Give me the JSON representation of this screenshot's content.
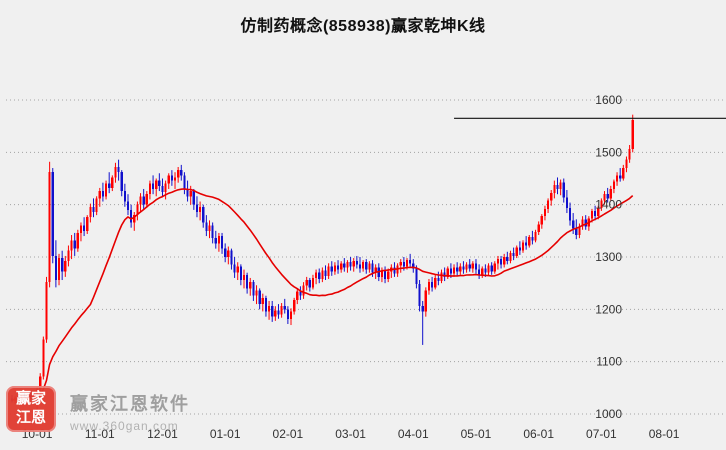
{
  "title": "仿制药概念(858938)赢家乾坤K线",
  "watermark": {
    "logo_line1": "赢家",
    "logo_line2": "江恩",
    "name": "赢家江恩软件",
    "site": "www.360gan.com"
  },
  "colors": {
    "up": "#ff0000",
    "down": "#1010cc",
    "ma": "#e60000",
    "grid": "#a3a3a3",
    "price_line": "#111111",
    "axis_text": "#333333",
    "background": "#f0f0f0"
  },
  "chart_data": {
    "type": "candlestick",
    "title": "仿制药概念(858938)赢家乾坤K线",
    "ylabel": "",
    "xlabel": "",
    "ylim": [
      1000,
      1600
    ],
    "y_ticks": [
      1000,
      1100,
      1200,
      1300,
      1400,
      1500,
      1600
    ],
    "x_tick_labels": [
      "10-01",
      "11-01",
      "12-01",
      "01-01",
      "02-01",
      "03-01",
      "04-01",
      "05-01",
      "06-01",
      "07-01",
      "08-01"
    ],
    "x_tick_indices": [
      8,
      28,
      48,
      68,
      88,
      108,
      128,
      148,
      168,
      188,
      208
    ],
    "grid": "dotted-horizontal",
    "legend": "none",
    "y_axis_side": "right",
    "ma_period": 26,
    "price_line": {
      "value": 1565,
      "from_index": 141
    },
    "ohlc": [
      [
        1030,
        1036,
        1022,
        1026
      ],
      [
        1026,
        1034,
        1020,
        1032
      ],
      [
        1032,
        1038,
        1024,
        1028
      ],
      [
        1028,
        1036,
        1022,
        1034
      ],
      [
        1034,
        1040,
        1026,
        1030
      ],
      [
        1030,
        1038,
        1022,
        1036
      ],
      [
        1036,
        1042,
        1028,
        1032
      ],
      [
        1032,
        1040,
        1026,
        1038
      ],
      [
        1038,
        1052,
        1008,
        1048
      ],
      [
        1048,
        1078,
        1040,
        1072
      ],
      [
        1072,
        1148,
        1066,
        1142
      ],
      [
        1142,
        1262,
        1136,
        1252
      ],
      [
        1252,
        1482,
        1242,
        1462
      ],
      [
        1462,
        1470,
        1288,
        1302
      ],
      [
        1302,
        1332,
        1242,
        1256
      ],
      [
        1256,
        1306,
        1246,
        1298
      ],
      [
        1298,
        1312,
        1256,
        1272
      ],
      [
        1272,
        1302,
        1262,
        1292
      ],
      [
        1292,
        1322,
        1282,
        1312
      ],
      [
        1312,
        1342,
        1296,
        1332
      ],
      [
        1332,
        1346,
        1302,
        1316
      ],
      [
        1316,
        1352,
        1310,
        1346
      ],
      [
        1346,
        1366,
        1330,
        1360
      ],
      [
        1360,
        1376,
        1340,
        1350
      ],
      [
        1350,
        1380,
        1344,
        1376
      ],
      [
        1376,
        1402,
        1366,
        1396
      ],
      [
        1396,
        1412,
        1376,
        1386
      ],
      [
        1386,
        1416,
        1380,
        1412
      ],
      [
        1412,
        1432,
        1396,
        1426
      ],
      [
        1426,
        1442,
        1406,
        1416
      ],
      [
        1416,
        1446,
        1410,
        1440
      ],
      [
        1440,
        1462,
        1422,
        1432
      ],
      [
        1432,
        1456,
        1426,
        1452
      ],
      [
        1452,
        1480,
        1442,
        1472
      ],
      [
        1472,
        1486,
        1446,
        1462
      ],
      [
        1462,
        1466,
        1416,
        1426
      ],
      [
        1426,
        1440,
        1396,
        1406
      ],
      [
        1406,
        1420,
        1380,
        1390
      ],
      [
        1390,
        1400,
        1356,
        1366
      ],
      [
        1366,
        1386,
        1350,
        1380
      ],
      [
        1380,
        1406,
        1370,
        1400
      ],
      [
        1400,
        1422,
        1386,
        1416
      ],
      [
        1416,
        1430,
        1390,
        1400
      ],
      [
        1400,
        1426,
        1394,
        1420
      ],
      [
        1420,
        1446,
        1410,
        1440
      ],
      [
        1440,
        1456,
        1420,
        1430
      ],
      [
        1430,
        1450,
        1416,
        1446
      ],
      [
        1446,
        1460,
        1426,
        1436
      ],
      [
        1436,
        1450,
        1414,
        1424
      ],
      [
        1424,
        1446,
        1410,
        1440
      ],
      [
        1440,
        1460,
        1430,
        1456
      ],
      [
        1456,
        1466,
        1436,
        1446
      ],
      [
        1446,
        1462,
        1430,
        1452
      ],
      [
        1452,
        1472,
        1442,
        1466
      ],
      [
        1466,
        1476,
        1446,
        1456
      ],
      [
        1456,
        1462,
        1420,
        1430
      ],
      [
        1430,
        1446,
        1406,
        1416
      ],
      [
        1416,
        1436,
        1400,
        1426
      ],
      [
        1426,
        1430,
        1390,
        1400
      ],
      [
        1400,
        1416,
        1376,
        1386
      ],
      [
        1386,
        1406,
        1370,
        1396
      ],
      [
        1396,
        1400,
        1356,
        1366
      ],
      [
        1366,
        1380,
        1340,
        1350
      ],
      [
        1350,
        1370,
        1336,
        1360
      ],
      [
        1360,
        1366,
        1326,
        1336
      ],
      [
        1336,
        1350,
        1316,
        1326
      ],
      [
        1326,
        1346,
        1310,
        1340
      ],
      [
        1340,
        1346,
        1306,
        1316
      ],
      [
        1316,
        1326,
        1290,
        1300
      ],
      [
        1300,
        1320,
        1286,
        1312
      ],
      [
        1312,
        1316,
        1276,
        1286
      ],
      [
        1286,
        1300,
        1260,
        1270
      ],
      [
        1270,
        1290,
        1256,
        1282
      ],
      [
        1282,
        1286,
        1246,
        1256
      ],
      [
        1256,
        1276,
        1240,
        1266
      ],
      [
        1266,
        1270,
        1230,
        1240
      ],
      [
        1240,
        1260,
        1226,
        1252
      ],
      [
        1252,
        1256,
        1216,
        1226
      ],
      [
        1226,
        1246,
        1210,
        1236
      ],
      [
        1236,
        1240,
        1200,
        1210
      ],
      [
        1210,
        1230,
        1196,
        1222
      ],
      [
        1222,
        1226,
        1186,
        1196
      ],
      [
        1196,
        1216,
        1180,
        1206
      ],
      [
        1206,
        1216,
        1176,
        1186
      ],
      [
        1186,
        1206,
        1178,
        1198
      ],
      [
        1198,
        1210,
        1182,
        1190
      ],
      [
        1190,
        1212,
        1184,
        1206
      ],
      [
        1206,
        1220,
        1192,
        1200
      ],
      [
        1200,
        1206,
        1172,
        1182
      ],
      [
        1182,
        1202,
        1170,
        1196
      ],
      [
        1196,
        1222,
        1190,
        1218
      ],
      [
        1218,
        1240,
        1210,
        1234
      ],
      [
        1234,
        1244,
        1218,
        1226
      ],
      [
        1226,
        1252,
        1220,
        1246
      ],
      [
        1246,
        1262,
        1236,
        1256
      ],
      [
        1256,
        1260,
        1234,
        1242
      ],
      [
        1242,
        1266,
        1238,
        1260
      ],
      [
        1260,
        1276,
        1248,
        1270
      ],
      [
        1270,
        1278,
        1250,
        1258
      ],
      [
        1258,
        1280,
        1252,
        1274
      ],
      [
        1274,
        1284,
        1256,
        1264
      ],
      [
        1264,
        1288,
        1258,
        1282
      ],
      [
        1282,
        1292,
        1264,
        1272
      ],
      [
        1272,
        1290,
        1266,
        1284
      ],
      [
        1284,
        1294,
        1268,
        1276
      ],
      [
        1276,
        1292,
        1270,
        1288
      ],
      [
        1288,
        1298,
        1272,
        1280
      ],
      [
        1280,
        1294,
        1270,
        1290
      ],
      [
        1290,
        1300,
        1274,
        1282
      ],
      [
        1282,
        1298,
        1272,
        1292
      ],
      [
        1292,
        1302,
        1278,
        1286
      ],
      [
        1286,
        1300,
        1270,
        1278
      ],
      [
        1278,
        1294,
        1272,
        1290
      ],
      [
        1290,
        1296,
        1268,
        1276
      ],
      [
        1276,
        1292,
        1270,
        1288
      ],
      [
        1288,
        1294,
        1262,
        1270
      ],
      [
        1270,
        1286,
        1258,
        1280
      ],
      [
        1280,
        1288,
        1254,
        1262
      ],
      [
        1262,
        1280,
        1252,
        1274
      ],
      [
        1274,
        1282,
        1250,
        1258
      ],
      [
        1258,
        1278,
        1252,
        1272
      ],
      [
        1272,
        1286,
        1260,
        1280
      ],
      [
        1280,
        1290,
        1262,
        1268
      ],
      [
        1268,
        1288,
        1262,
        1284
      ],
      [
        1284,
        1296,
        1270,
        1290
      ],
      [
        1290,
        1300,
        1274,
        1282
      ],
      [
        1282,
        1298,
        1276,
        1294
      ],
      [
        1294,
        1306,
        1280,
        1288
      ],
      [
        1288,
        1296,
        1270,
        1278
      ],
      [
        1278,
        1284,
        1240,
        1248
      ],
      [
        1248,
        1256,
        1196,
        1206
      ],
      [
        1206,
        1216,
        1132,
        1196
      ],
      [
        1196,
        1242,
        1186,
        1236
      ],
      [
        1236,
        1258,
        1228,
        1252
      ],
      [
        1252,
        1262,
        1234,
        1242
      ],
      [
        1242,
        1266,
        1238,
        1260
      ],
      [
        1260,
        1272,
        1246,
        1254
      ],
      [
        1254,
        1276,
        1250,
        1270
      ],
      [
        1270,
        1280,
        1254,
        1262
      ],
      [
        1262,
        1282,
        1258,
        1278
      ],
      [
        1278,
        1288,
        1260,
        1268
      ],
      [
        1268,
        1286,
        1262,
        1280
      ],
      [
        1280,
        1290,
        1264,
        1272
      ],
      [
        1272,
        1288,
        1266,
        1282
      ],
      [
        1282,
        1292,
        1268,
        1276
      ],
      [
        1276,
        1290,
        1270,
        1286
      ],
      [
        1286,
        1296,
        1272,
        1278
      ],
      [
        1278,
        1292,
        1270,
        1288
      ],
      [
        1288,
        1296,
        1268,
        1276
      ],
      [
        1276,
        1286,
        1258,
        1266
      ],
      [
        1266,
        1282,
        1260,
        1278
      ],
      [
        1278,
        1286,
        1262,
        1270
      ],
      [
        1270,
        1288,
        1264,
        1284
      ],
      [
        1284,
        1290,
        1266,
        1272
      ],
      [
        1272,
        1292,
        1268,
        1288
      ],
      [
        1288,
        1302,
        1276,
        1296
      ],
      [
        1296,
        1302,
        1278,
        1286
      ],
      [
        1286,
        1306,
        1280,
        1300
      ],
      [
        1300,
        1310,
        1286,
        1292
      ],
      [
        1292,
        1312,
        1288,
        1308
      ],
      [
        1308,
        1318,
        1294,
        1302
      ],
      [
        1302,
        1322,
        1298,
        1318
      ],
      [
        1318,
        1330,
        1304,
        1312
      ],
      [
        1312,
        1332,
        1308,
        1328
      ],
      [
        1328,
        1340,
        1314,
        1322
      ],
      [
        1322,
        1342,
        1318,
        1338
      ],
      [
        1338,
        1350,
        1324,
        1332
      ],
      [
        1332,
        1352,
        1328,
        1348
      ],
      [
        1348,
        1368,
        1342,
        1362
      ],
      [
        1362,
        1382,
        1354,
        1378
      ],
      [
        1378,
        1398,
        1370,
        1392
      ],
      [
        1392,
        1412,
        1384,
        1408
      ],
      [
        1408,
        1428,
        1398,
        1422
      ],
      [
        1422,
        1446,
        1412,
        1438
      ],
      [
        1438,
        1452,
        1420,
        1430
      ],
      [
        1430,
        1448,
        1418,
        1442
      ],
      [
        1442,
        1450,
        1404,
        1414
      ],
      [
        1414,
        1428,
        1384,
        1394
      ],
      [
        1394,
        1404,
        1360,
        1370
      ],
      [
        1370,
        1384,
        1344,
        1354
      ],
      [
        1354,
        1372,
        1334,
        1342
      ],
      [
        1342,
        1364,
        1336,
        1358
      ],
      [
        1358,
        1378,
        1352,
        1372
      ],
      [
        1372,
        1380,
        1352,
        1358
      ],
      [
        1358,
        1378,
        1350,
        1374
      ],
      [
        1374,
        1392,
        1366,
        1388
      ],
      [
        1388,
        1398,
        1370,
        1378
      ],
      [
        1378,
        1398,
        1372,
        1394
      ],
      [
        1394,
        1412,
        1388,
        1408
      ],
      [
        1408,
        1426,
        1400,
        1420
      ],
      [
        1420,
        1432,
        1404,
        1412
      ],
      [
        1412,
        1436,
        1408,
        1430
      ],
      [
        1430,
        1448,
        1422,
        1444
      ],
      [
        1444,
        1462,
        1436,
        1456
      ],
      [
        1456,
        1470,
        1444,
        1450
      ],
      [
        1450,
        1476,
        1446,
        1470
      ],
      [
        1470,
        1492,
        1462,
        1486
      ],
      [
        1486,
        1514,
        1480,
        1506
      ],
      [
        1506,
        1572,
        1500,
        1562
      ]
    ]
  }
}
